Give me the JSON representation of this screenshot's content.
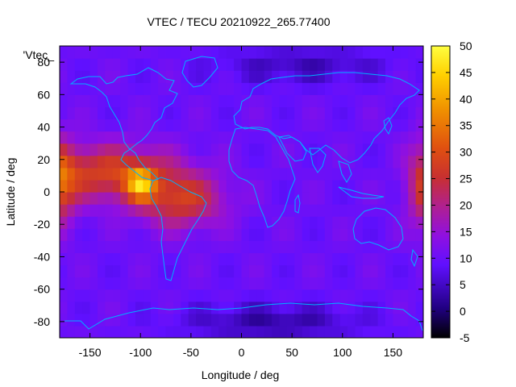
{
  "chart_data": {
    "type": "heatmap",
    "title": "VTEC / TECU 20210922_265.77400",
    "xlabel": "Longitude / deg",
    "ylabel": "Latitude / deg",
    "legend_entry": "'Vtec_",
    "xlim": [
      -180,
      180
    ],
    "ylim": [
      -90,
      90
    ],
    "xticks": [
      -150,
      -100,
      -50,
      0,
      50,
      100,
      150
    ],
    "xtick_labels": [
      "-150",
      "-100",
      "-50",
      "0",
      "50",
      "100",
      "150"
    ],
    "yticks": [
      -80,
      -60,
      -40,
      -20,
      0,
      20,
      40,
      60,
      80
    ],
    "ytick_labels": [
      "-80",
      "-60",
      "-40",
      "-20",
      "0",
      "20",
      "40",
      "60",
      "80"
    ],
    "colorbar": {
      "min": -5,
      "max": 50,
      "ticks": [
        -5,
        0,
        5,
        10,
        15,
        20,
        25,
        30,
        35,
        40,
        45,
        50
      ],
      "tick_labels": [
        "-5",
        "0",
        "5",
        "10",
        "15",
        "20",
        "25",
        "30",
        "35",
        "40",
        "45",
        "50"
      ]
    },
    "grid": false,
    "coastline_color": "#00b0ff",
    "field_summary": {
      "background_tecu": 10,
      "crest_peak_tecu": 48,
      "crest_peak_location": {
        "lon": -100,
        "lat": 5
      },
      "crest_band_tecu": 28,
      "polar_min_tecu": 3
    }
  }
}
